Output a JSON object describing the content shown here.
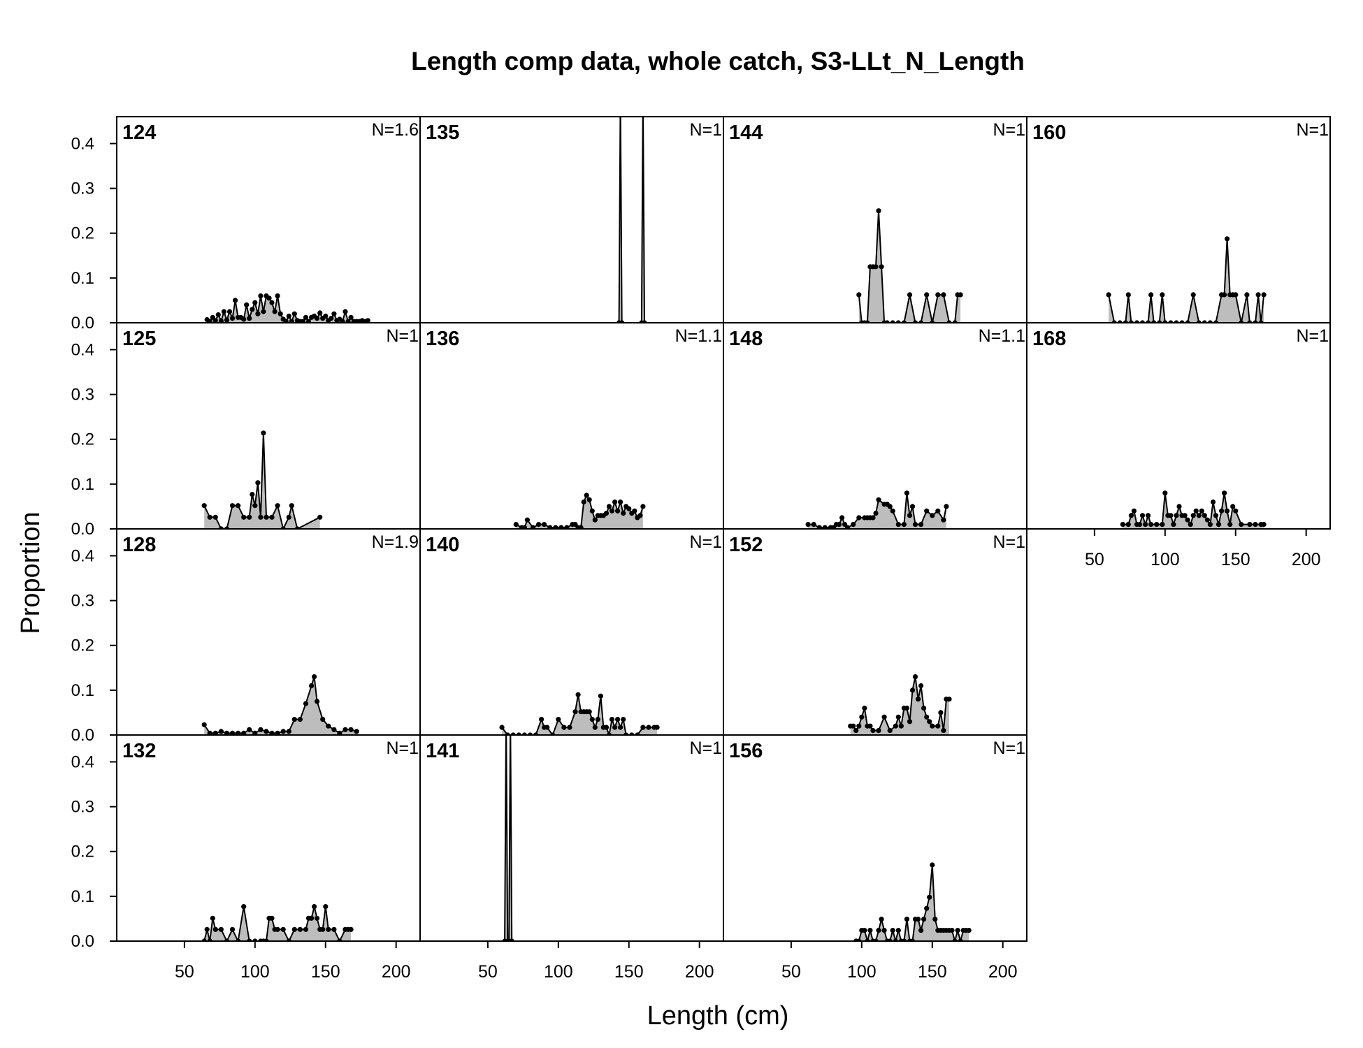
{
  "figure": {
    "title": "Length comp data, whole catch, S3-LLt_N_Length",
    "xlabel": "Length (cm)",
    "ylabel": "Proportion"
  },
  "chart_data": {
    "type": "area",
    "title": "Length comp data, whole catch, S3-LLt_N_Length",
    "xlabel": "Length (cm)",
    "ylabel": "Proportion",
    "xlim": [
      2,
      217
    ],
    "ylim": [
      0,
      0.46
    ],
    "x_ticks": [
      50,
      100,
      150,
      200
    ],
    "y_ticks": [
      0.0,
      0.1,
      0.2,
      0.3,
      0.4
    ],
    "x_tick_labels": [
      "50",
      "100",
      "150",
      "200"
    ],
    "y_tick_labels": [
      "0.0",
      "0.1",
      "0.2",
      "0.3",
      "0.4"
    ],
    "grid": false,
    "panels": [
      {
        "label": "124",
        "n": "N=1.6",
        "x": [
          66,
          68,
          70,
          72,
          74,
          76,
          78,
          80,
          82,
          84,
          86,
          88,
          90,
          92,
          94,
          96,
          98,
          100,
          102,
          104,
          106,
          108,
          110,
          112,
          114,
          116,
          118,
          120,
          122,
          124,
          126,
          128,
          130,
          132,
          134,
          136,
          138,
          140,
          142,
          144,
          146,
          148,
          150,
          152,
          154,
          156,
          158,
          160,
          162,
          164,
          166,
          168,
          170,
          172,
          174,
          176,
          178,
          180
        ],
        "y": [
          0.007,
          0.003,
          0.012,
          0.005,
          0.018,
          0.004,
          0.025,
          0.006,
          0.025,
          0.01,
          0.05,
          0.012,
          0.012,
          0.008,
          0.04,
          0.01,
          0.03,
          0.045,
          0.02,
          0.06,
          0.025,
          0.06,
          0.055,
          0.045,
          0.025,
          0.06,
          0.02,
          0.008,
          0.003,
          0.015,
          0.003,
          0.02,
          0.005,
          0.003,
          0.003,
          0.012,
          0.003,
          0.012,
          0.015,
          0.01,
          0.022,
          0.01,
          0.015,
          0.005,
          0.01,
          0.02,
          0.005,
          0.008,
          0.003,
          0.025,
          0.003,
          0.012,
          0.003,
          0.003,
          0.003,
          0.005,
          0.003,
          0.005
        ]
      },
      {
        "label": "125",
        "n": "N=1",
        "x": [
          64,
          68,
          72,
          76,
          80,
          84,
          88,
          92,
          96,
          98,
          100,
          102,
          104,
          106,
          108,
          112,
          116,
          120,
          124,
          126,
          130,
          146
        ],
        "y": [
          0.052,
          0.026,
          0.026,
          0.0,
          0.0,
          0.052,
          0.052,
          0.026,
          0.026,
          0.077,
          0.052,
          0.103,
          0.026,
          0.214,
          0.026,
          0.026,
          0.052,
          0.0,
          0.026,
          0.052,
          0.0,
          0.026
        ]
      },
      {
        "label": "128",
        "n": "N=1.9",
        "x": [
          64,
          68,
          72,
          76,
          80,
          84,
          88,
          92,
          96,
          100,
          104,
          108,
          112,
          116,
          120,
          124,
          128,
          132,
          136,
          140,
          142,
          144,
          148,
          152,
          156,
          160,
          164,
          168,
          172
        ],
        "y": [
          0.023,
          0.004,
          0.004,
          0.008,
          0.004,
          0.004,
          0.004,
          0.004,
          0.012,
          0.004,
          0.012,
          0.008,
          0.004,
          0.004,
          0.008,
          0.008,
          0.035,
          0.035,
          0.07,
          0.11,
          0.13,
          0.075,
          0.035,
          0.02,
          0.012,
          0.004,
          0.012,
          0.012,
          0.008
        ]
      },
      {
        "label": "132",
        "n": "N=1",
        "x": [
          64,
          66,
          68,
          70,
          72,
          76,
          80,
          84,
          88,
          92,
          96,
          100,
          104,
          106,
          108,
          110,
          112,
          114,
          116,
          120,
          124,
          128,
          132,
          136,
          138,
          140,
          142,
          144,
          146,
          148,
          150,
          152,
          156,
          160,
          164,
          166,
          168
        ],
        "y": [
          0.0,
          0.026,
          0.0,
          0.051,
          0.026,
          0.026,
          0.0,
          0.026,
          0.0,
          0.077,
          0.0,
          0.0,
          0.0,
          0.0,
          0.0,
          0.051,
          0.051,
          0.026,
          0.026,
          0.026,
          0.0,
          0.026,
          0.026,
          0.026,
          0.051,
          0.051,
          0.077,
          0.051,
          0.026,
          0.026,
          0.077,
          0.026,
          0.026,
          0.0,
          0.026,
          0.026,
          0.026
        ]
      },
      {
        "label": "135",
        "n": "N=1",
        "x": [
          143,
          144,
          145,
          159,
          160,
          161
        ],
        "y": [
          0.0,
          0.5,
          0.0,
          0.0,
          0.5,
          0.0
        ]
      },
      {
        "label": "136",
        "n": "N=1.1",
        "x": [
          70,
          74,
          76,
          78,
          82,
          86,
          90,
          94,
          98,
          102,
          106,
          110,
          112,
          114,
          116,
          118,
          120,
          122,
          124,
          126,
          128,
          130,
          132,
          134,
          136,
          138,
          140,
          142,
          144,
          146,
          148,
          150,
          152,
          154,
          156,
          158,
          160
        ],
        "y": [
          0.01,
          0.003,
          0.003,
          0.02,
          0.003,
          0.01,
          0.01,
          0.003,
          0.003,
          0.003,
          0.003,
          0.01,
          0.01,
          0.003,
          0.003,
          0.06,
          0.075,
          0.065,
          0.04,
          0.02,
          0.03,
          0.03,
          0.03,
          0.035,
          0.05,
          0.04,
          0.06,
          0.04,
          0.06,
          0.035,
          0.05,
          0.045,
          0.035,
          0.04,
          0.025,
          0.03,
          0.05
        ]
      },
      {
        "label": "140",
        "n": "N=1",
        "x": [
          60,
          64,
          68,
          72,
          76,
          80,
          84,
          88,
          90,
          92,
          96,
          100,
          104,
          108,
          112,
          114,
          116,
          118,
          120,
          122,
          124,
          126,
          128,
          130,
          132,
          134,
          136,
          138,
          140,
          142,
          144,
          146,
          148,
          152,
          156,
          160,
          164,
          168,
          170
        ],
        "y": [
          0.017,
          0.0,
          0.0,
          0.0,
          0.0,
          0.0,
          0.0,
          0.035,
          0.017,
          0.017,
          0.0,
          0.035,
          0.017,
          0.017,
          0.052,
          0.09,
          0.052,
          0.052,
          0.052,
          0.052,
          0.035,
          0.017,
          0.035,
          0.087,
          0.017,
          0.017,
          0.0,
          0.035,
          0.017,
          0.035,
          0.017,
          0.035,
          0.0,
          0.0,
          0.0,
          0.017,
          0.017,
          0.017,
          0.017
        ]
      },
      {
        "label": "141",
        "n": "N=1",
        "x": [
          62,
          63,
          64,
          65,
          66,
          67
        ],
        "y": [
          0.0,
          0.5,
          0.0,
          0.0,
          0.5,
          0.0
        ]
      },
      {
        "label": "144",
        "n": "N=1",
        "x": [
          98,
          100,
          102,
          104,
          106,
          108,
          110,
          112,
          114,
          116,
          118,
          122,
          126,
          130,
          134,
          138,
          142,
          146,
          150,
          154,
          158,
          162,
          166,
          168,
          170
        ],
        "y": [
          0.0625,
          0.0,
          0.0,
          0.0,
          0.125,
          0.125,
          0.125,
          0.25,
          0.125,
          0.0,
          0.0,
          0.0,
          0.0,
          0.0,
          0.0625,
          0.0,
          0.0,
          0.0625,
          0.0,
          0.0625,
          0.0625,
          0.0,
          0.0,
          0.0625,
          0.0625
        ]
      },
      {
        "label": "148",
        "n": "N=1.1",
        "x": [
          62,
          66,
          70,
          74,
          78,
          80,
          82,
          84,
          86,
          88,
          90,
          94,
          98,
          102,
          104,
          106,
          108,
          110,
          112,
          116,
          118,
          120,
          122,
          126,
          130,
          132,
          134,
          136,
          138,
          142,
          146,
          150,
          154,
          158,
          160
        ],
        "y": [
          0.01,
          0.01,
          0.003,
          0.003,
          0.003,
          0.003,
          0.01,
          0.01,
          0.025,
          0.01,
          0.003,
          0.01,
          0.025,
          0.025,
          0.025,
          0.025,
          0.025,
          0.035,
          0.065,
          0.055,
          0.055,
          0.05,
          0.04,
          0.01,
          0.01,
          0.08,
          0.03,
          0.05,
          0.01,
          0.01,
          0.04,
          0.03,
          0.04,
          0.02,
          0.05
        ]
      },
      {
        "label": "152",
        "n": "N=1",
        "x": [
          92,
          94,
          96,
          98,
          100,
          102,
          104,
          106,
          108,
          112,
          116,
          120,
          124,
          126,
          128,
          130,
          132,
          134,
          136,
          138,
          140,
          142,
          144,
          146,
          148,
          150,
          154,
          156,
          158,
          160,
          162
        ],
        "y": [
          0.02,
          0.02,
          0.01,
          0.02,
          0.04,
          0.06,
          0.02,
          0.02,
          0.01,
          0.01,
          0.04,
          0.01,
          0.02,
          0.04,
          0.02,
          0.06,
          0.06,
          0.03,
          0.1,
          0.13,
          0.08,
          0.11,
          0.06,
          0.04,
          0.03,
          0.02,
          0.02,
          0.05,
          0.01,
          0.08,
          0.08
        ]
      },
      {
        "label": "156",
        "n": "N=1",
        "x": [
          96,
          98,
          100,
          102,
          104,
          106,
          108,
          110,
          112,
          114,
          116,
          118,
          120,
          122,
          124,
          126,
          128,
          130,
          132,
          134,
          136,
          138,
          140,
          142,
          144,
          146,
          148,
          150,
          152,
          154,
          156,
          158,
          160,
          162,
          164,
          166,
          168,
          170,
          172,
          174,
          176
        ],
        "y": [
          0.0,
          0.0,
          0.024,
          0.024,
          0.0,
          0.024,
          0.0,
          0.0,
          0.024,
          0.049,
          0.024,
          0.0,
          0.0,
          0.024,
          0.0,
          0.024,
          0.0,
          0.0,
          0.049,
          0.0,
          0.0,
          0.049,
          0.049,
          0.024,
          0.049,
          0.073,
          0.098,
          0.17,
          0.049,
          0.024,
          0.024,
          0.024,
          0.024,
          0.024,
          0.024,
          0.0,
          0.024,
          0.0,
          0.024,
          0.024,
          0.024
        ]
      },
      {
        "label": "160",
        "n": "N=1",
        "x": [
          60,
          64,
          68,
          72,
          74,
          76,
          80,
          84,
          88,
          90,
          92,
          96,
          98,
          100,
          104,
          108,
          112,
          116,
          120,
          124,
          128,
          132,
          136,
          140,
          142,
          144,
          146,
          148,
          150,
          154,
          158,
          160,
          164,
          166,
          168,
          170
        ],
        "y": [
          0.0625,
          0.0,
          0.0,
          0.0,
          0.0625,
          0.0,
          0.0,
          0.0,
          0.0,
          0.0625,
          0.0,
          0.0,
          0.0625,
          0.0,
          0.0,
          0.0,
          0.0,
          0.0,
          0.0625,
          0.0,
          0.0,
          0.0,
          0.0,
          0.0625,
          0.0625,
          0.1875,
          0.0625,
          0.0625,
          0.0625,
          0.0,
          0.0625,
          0.0,
          0.0,
          0.0625,
          0.0,
          0.0625
        ]
      },
      {
        "label": "168",
        "n": "N=1",
        "x": [
          70,
          74,
          76,
          78,
          80,
          82,
          84,
          86,
          88,
          90,
          94,
          98,
          100,
          102,
          104,
          106,
          108,
          110,
          112,
          114,
          116,
          118,
          120,
          122,
          124,
          126,
          128,
          130,
          132,
          134,
          136,
          138,
          140,
          142,
          144,
          146,
          148,
          150,
          154,
          160,
          164,
          168,
          170
        ],
        "y": [
          0.01,
          0.01,
          0.03,
          0.04,
          0.01,
          0.01,
          0.03,
          0.01,
          0.03,
          0.01,
          0.01,
          0.01,
          0.08,
          0.03,
          0.03,
          0.01,
          0.03,
          0.05,
          0.03,
          0.03,
          0.02,
          0.01,
          0.03,
          0.04,
          0.03,
          0.04,
          0.03,
          0.02,
          0.01,
          0.06,
          0.03,
          0.01,
          0.04,
          0.08,
          0.04,
          0.01,
          0.05,
          0.04,
          0.01,
          0.01,
          0.01,
          0.01,
          0.01
        ]
      }
    ]
  }
}
